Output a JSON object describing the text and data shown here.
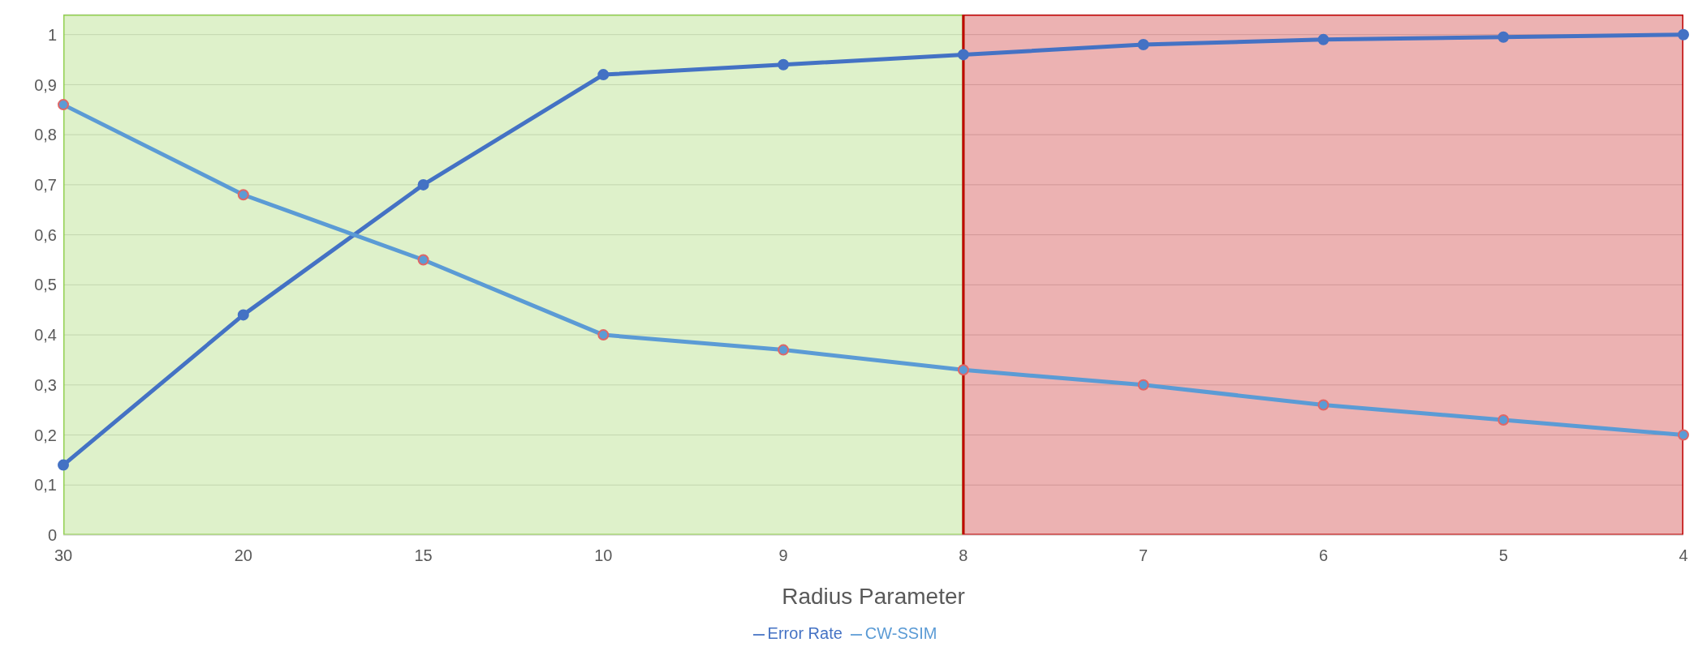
{
  "chart_data": {
    "type": "line",
    "xlabel": "Radius Parameter",
    "categories": [
      "30",
      "20",
      "15",
      "10",
      "9",
      "8",
      "7",
      "6",
      "5",
      "4"
    ],
    "series": [
      {
        "name": "Error Rate",
        "color": "#4472c4",
        "values": [
          0.14,
          0.44,
          0.7,
          0.92,
          0.94,
          0.96,
          0.98,
          0.99,
          0.995,
          1.0
        ]
      },
      {
        "name": "CW-SSIM",
        "color": "#5b9bd5",
        "values": [
          0.86,
          0.68,
          0.55,
          0.4,
          0.37,
          0.33,
          0.3,
          0.26,
          0.23,
          0.2
        ]
      }
    ],
    "ylim": [
      0,
      1.04
    ],
    "yticks": [
      {
        "value": 0,
        "label": "0"
      },
      {
        "value": 0.1,
        "label": "0,1"
      },
      {
        "value": 0.2,
        "label": "0,2"
      },
      {
        "value": 0.3,
        "label": "0,3"
      },
      {
        "value": 0.4,
        "label": "0,4"
      },
      {
        "value": 0.5,
        "label": "0,5"
      },
      {
        "value": 0.6,
        "label": "0,6"
      },
      {
        "value": 0.7,
        "label": "0,7"
      },
      {
        "value": 0.8,
        "label": "0,8"
      },
      {
        "value": 0.9,
        "label": "0,9"
      },
      {
        "value": 1,
        "label": "1"
      }
    ],
    "bands": [
      {
        "axis": "x",
        "from": "30",
        "to": "8",
        "color": "#92d050"
      },
      {
        "axis": "x",
        "from": "8",
        "to": "4",
        "color": "#c00000"
      }
    ],
    "grid": "y",
    "legend": "bottom",
    "marker": "circle",
    "line_style": "solid"
  }
}
